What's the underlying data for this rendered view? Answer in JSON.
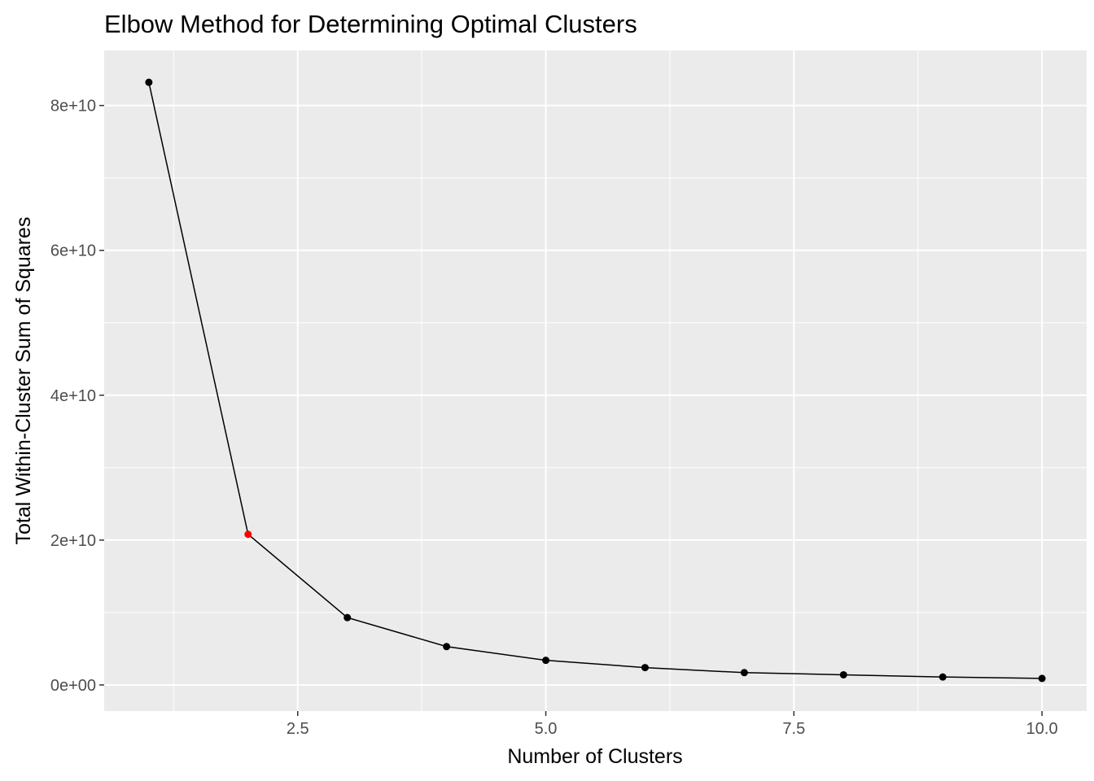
{
  "chart_data": {
    "type": "line",
    "title": "Elbow Method for Determining Optimal Clusters",
    "xlabel": "Number of Clusters",
    "ylabel": "Total Within-Cluster Sum of Squares",
    "xlim": [
      0.55,
      10.45
    ],
    "ylim": [
      -3600000000,
      87600000000
    ],
    "x_ticks": [
      {
        "value": 2.5,
        "label": "2.5"
      },
      {
        "value": 5.0,
        "label": "5.0"
      },
      {
        "value": 7.5,
        "label": "7.5"
      },
      {
        "value": 10.0,
        "label": "10.0"
      }
    ],
    "y_ticks": [
      {
        "value": 0,
        "label": "0e+00"
      },
      {
        "value": 20000000000,
        "label": "2e+10"
      },
      {
        "value": 40000000000,
        "label": "4e+10"
      },
      {
        "value": 60000000000,
        "label": "6e+10"
      },
      {
        "value": 80000000000,
        "label": "8e+10"
      }
    ],
    "x_minor": [
      1.25,
      3.75,
      6.25,
      8.75
    ],
    "y_minor": [
      10000000000,
      30000000000,
      50000000000,
      70000000000
    ],
    "grid": true,
    "series": [
      {
        "x": [
          1,
          2,
          3,
          4,
          5,
          6,
          7,
          8,
          9,
          10
        ],
        "values": [
          83200000000,
          20800000000,
          9300000000,
          5300000000,
          3400000000,
          2400000000,
          1700000000,
          1400000000,
          1100000000,
          900000000
        ],
        "line_color": "#000000",
        "point_color": "#000000"
      }
    ],
    "highlight": {
      "x": 2,
      "value": 20800000000,
      "color": "#ff0000"
    },
    "panel_background": "#ebebeb",
    "grid_color": "#ffffff"
  }
}
